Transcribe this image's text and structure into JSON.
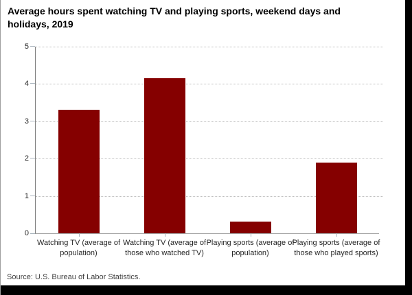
{
  "title": "Average hours spent watching TV and playing sports, weekend days and holidays, 2019",
  "source": "Source: U.S. Bureau of Labor Statistics.",
  "colors": {
    "bar": "#850000",
    "grid": "#bdbdbd",
    "y_axis": "#7f7f7f",
    "x_axis": "#a6a6a6",
    "tick": "#a9b4bd",
    "frame": "#000000",
    "title_text": "#000000",
    "label_text": "#262626"
  },
  "chart_data": {
    "type": "bar",
    "title": "Average hours spent watching TV and playing sports, weekend days and holidays, 2019",
    "categories": [
      "Watching TV (average of population)",
      "Watching TV (average of those who watched TV)",
      "Playing sports (average of population)",
      "Playing sports (average of those who played sports)"
    ],
    "values": [
      3.3,
      4.15,
      0.32,
      1.9
    ],
    "xlabel": "",
    "ylabel": "",
    "ylim": [
      0,
      5
    ],
    "yticks": [
      0,
      1,
      2,
      3,
      4,
      5
    ],
    "grid": "horizontal-dotted",
    "legend": "none",
    "bar_color": "#850000",
    "source": "Source: U.S. Bureau of Labor Statistics."
  }
}
